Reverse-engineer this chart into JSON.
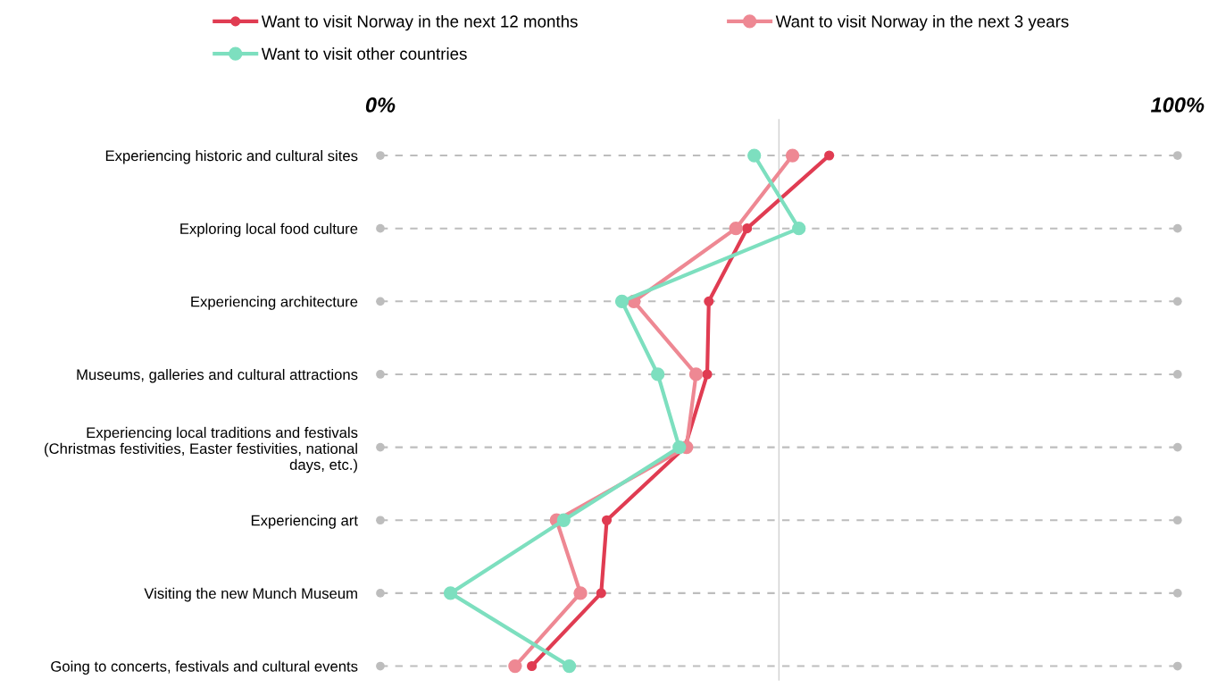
{
  "chart_data": {
    "type": "line",
    "orientation": "horizontal",
    "categories": [
      "Experiencing historic and cultural sites",
      "Exploring local food culture",
      "Experiencing architecture",
      "Museums, galleries and cultural attractions",
      "Experiencing local traditions and festivals\n(Christmas festivities, Easter festivities, national\ndays, etc.)",
      "Experiencing art",
      "Visiting the new Munch Museum",
      "Going to concerts, festivals and cultural events"
    ],
    "series": [
      {
        "name": "Want to visit Norway in the next 12 months",
        "color": "#e03c52",
        "values": [
          56.3,
          46.0,
          41.2,
          41.0,
          38.2,
          28.4,
          27.7,
          19.0
        ]
      },
      {
        "name": "Want to visit Norway in the next 3 years",
        "color": "#ee8893",
        "values": [
          51.7,
          44.6,
          31.8,
          39.6,
          38.4,
          22.1,
          25.1,
          16.9
        ]
      },
      {
        "name": "Want to visit other countries",
        "color": "#7ddfbf",
        "values": [
          46.9,
          52.5,
          30.3,
          34.8,
          37.5,
          23.0,
          8.8,
          23.7
        ]
      }
    ],
    "xlim": [
      0,
      100
    ],
    "xticks": [
      {
        "value": 0,
        "label": "0%"
      },
      {
        "value": 100,
        "label": "100%"
      }
    ],
    "ref_lines": [
      {
        "axis": "x",
        "value": 50,
        "color": "#d0d0d0"
      }
    ],
    "grid": "y",
    "legend": "top",
    "marker": "circle",
    "line_style": "solid"
  }
}
